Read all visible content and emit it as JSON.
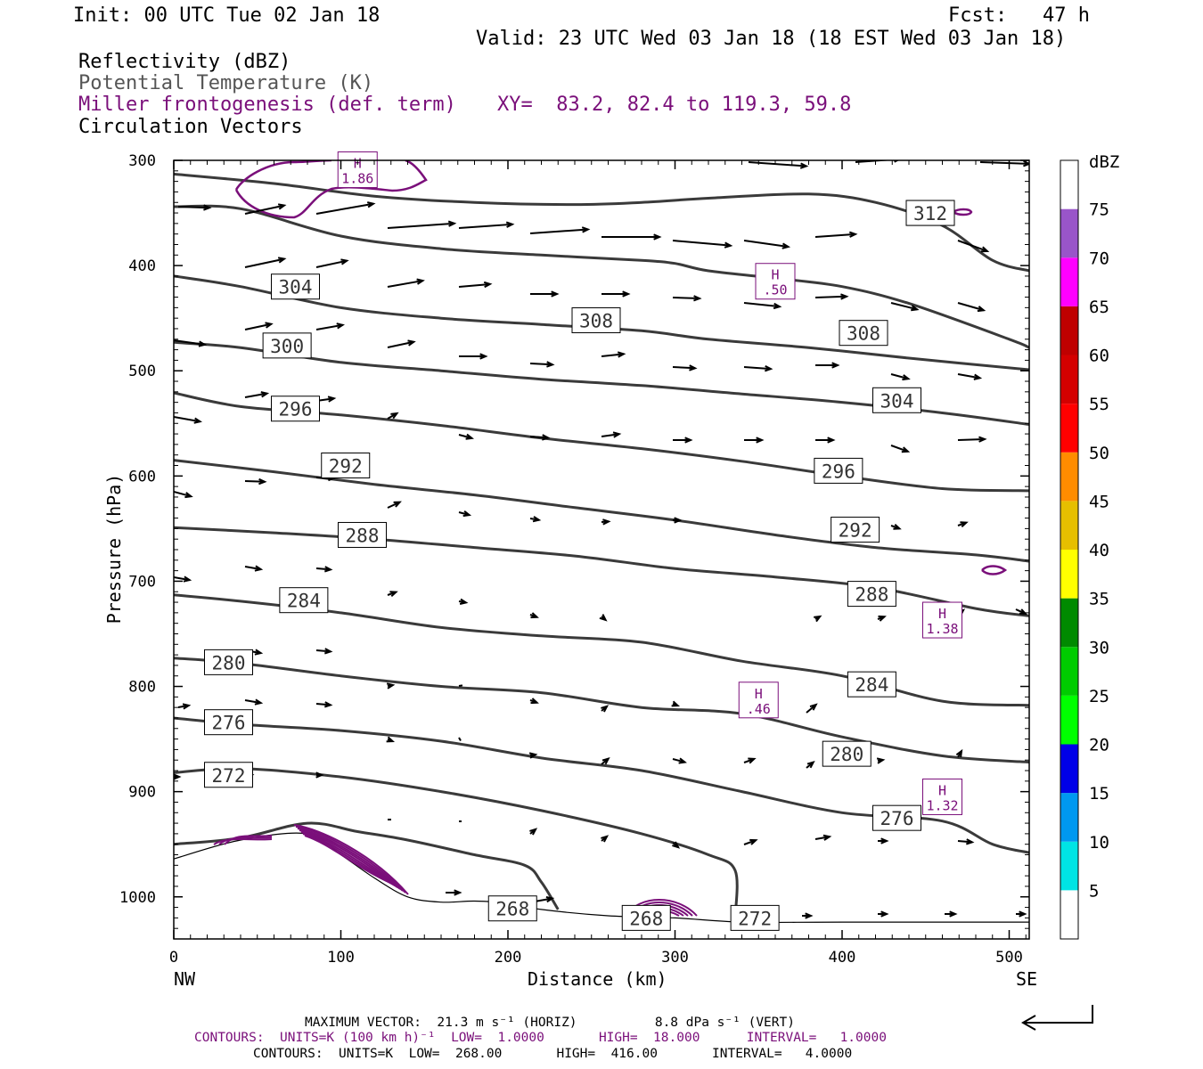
{
  "header": {
    "init": "Init: 00 UTC Tue 02 Jan 18",
    "fcst": "Fcst:   47 h",
    "valid": "Valid: 23 UTC Wed 03 Jan 18 (18 EST Wed 03 Jan 18)",
    "legend": {
      "reflectivity": "Reflectivity (dBZ)",
      "theta": "Potential Temperature (K)",
      "frontogenesis": "Miller frontogenesis (def. term)",
      "circulation": "Circulation Vectors",
      "xy": "XY=  83.2, 82.4 to 119.3, 59.8"
    }
  },
  "colors": {
    "theta": "#3a3a3a",
    "frontogenesis": "#7a0f7a",
    "vectors": "#000000"
  },
  "chart_data": {
    "type": "contour-cross-section",
    "xlabel": "Distance (km)",
    "ylabel": "Pressure (hPa)",
    "xlim": [
      0,
      512
    ],
    "ylim": [
      1040,
      300
    ],
    "x_ticks": [
      "0",
      "100",
      "200",
      "300",
      "400",
      "500"
    ],
    "x_tick_values": [
      0,
      100,
      200,
      300,
      400,
      500
    ],
    "y_ticks": [
      "300",
      "400",
      "500",
      "600",
      "700",
      "800",
      "900",
      "1000"
    ],
    "y_tick_values": [
      300,
      400,
      500,
      600,
      700,
      800,
      900,
      1000
    ],
    "x_end_left": "NW",
    "x_end_right": "SE",
    "theta_contours": [
      {
        "label": "308",
        "points": [
          [
            0,
            344
          ],
          [
            40,
            346
          ],
          [
            100,
            372
          ],
          [
            160,
            384
          ],
          [
            220,
            390
          ],
          [
            280,
            395
          ],
          [
            300,
            398
          ],
          [
            320,
            405
          ],
          [
            360,
            412
          ],
          [
            400,
            420
          ],
          [
            440,
            436
          ],
          [
            500,
            470
          ],
          [
            512,
            478
          ]
        ],
        "label_at": [
          240,
          452
        ]
      },
      {
        "label": "312",
        "points": [
          [
            0,
            313
          ],
          [
            60,
            322
          ],
          [
            120,
            334
          ],
          [
            180,
            340
          ],
          [
            240,
            342
          ],
          [
            280,
            340
          ],
          [
            320,
            336
          ],
          [
            380,
            332
          ],
          [
            420,
            340
          ],
          [
            460,
            362
          ],
          [
            490,
            395
          ],
          [
            512,
            405
          ]
        ],
        "label_at": [
          440,
          350
        ]
      },
      {
        "label": "304",
        "points": [
          [
            0,
            410
          ],
          [
            40,
            420
          ],
          [
            100,
            440
          ],
          [
            160,
            450
          ],
          [
            220,
            456
          ],
          [
            280,
            462
          ],
          [
            320,
            470
          ],
          [
            380,
            478
          ],
          [
            440,
            488
          ],
          [
            512,
            499
          ]
        ],
        "label_at": [
          60,
          420
        ]
      },
      {
        "label": "300",
        "points": [
          [
            0,
            473
          ],
          [
            40,
            478
          ],
          [
            100,
            492
          ],
          [
            160,
            500
          ],
          [
            220,
            508
          ],
          [
            280,
            514
          ],
          [
            340,
            522
          ],
          [
            400,
            530
          ],
          [
            460,
            540
          ],
          [
            512,
            551
          ]
        ],
        "label_at": [
          55,
          476
        ]
      },
      {
        "label": "296",
        "points": [
          [
            0,
            521
          ],
          [
            40,
            534
          ],
          [
            100,
            542
          ],
          [
            160,
            552
          ],
          [
            220,
            564
          ],
          [
            280,
            574
          ],
          [
            340,
            586
          ],
          [
            400,
            600
          ],
          [
            460,
            612
          ],
          [
            512,
            614
          ]
        ],
        "label_at": [
          60,
          536
        ]
      },
      {
        "label": "292",
        "points": [
          [
            0,
            585
          ],
          [
            60,
            596
          ],
          [
            120,
            608
          ],
          [
            180,
            618
          ],
          [
            240,
            630
          ],
          [
            300,
            642
          ],
          [
            360,
            656
          ],
          [
            420,
            668
          ],
          [
            480,
            675
          ],
          [
            512,
            681
          ]
        ],
        "label_at": [
          90,
          590
        ]
      },
      {
        "label": "288",
        "points": [
          [
            0,
            649
          ],
          [
            60,
            654
          ],
          [
            120,
            660
          ],
          [
            180,
            668
          ],
          [
            240,
            676
          ],
          [
            300,
            688
          ],
          [
            360,
            696
          ],
          [
            420,
            706
          ],
          [
            480,
            726
          ],
          [
            512,
            733
          ]
        ],
        "label_at": [
          100,
          656
        ]
      },
      {
        "label": "284",
        "points": [
          [
            0,
            713
          ],
          [
            40,
            719
          ],
          [
            100,
            730
          ],
          [
            160,
            744
          ],
          [
            220,
            752
          ],
          [
            280,
            758
          ],
          [
            340,
            776
          ],
          [
            400,
            790
          ],
          [
            460,
            814
          ],
          [
            512,
            818
          ]
        ],
        "label_at": [
          65,
          718
        ]
      },
      {
        "label": "280",
        "points": [
          [
            0,
            773
          ],
          [
            40,
            778
          ],
          [
            100,
            790
          ],
          [
            160,
            800
          ],
          [
            220,
            806
          ],
          [
            280,
            820
          ],
          [
            340,
            826
          ],
          [
            400,
            848
          ],
          [
            460,
            866
          ],
          [
            512,
            872
          ]
        ],
        "label_at": [
          20,
          777
        ]
      },
      {
        "label": "276",
        "points": [
          [
            0,
            830
          ],
          [
            40,
            836
          ],
          [
            100,
            842
          ],
          [
            160,
            852
          ],
          [
            220,
            868
          ],
          [
            280,
            880
          ],
          [
            340,
            900
          ],
          [
            400,
            920
          ],
          [
            460,
            928
          ],
          [
            490,
            950
          ],
          [
            512,
            958
          ]
        ],
        "label_at": [
          20,
          834
        ]
      },
      {
        "label": "272",
        "points": [
          [
            0,
            882
          ],
          [
            40,
            878
          ],
          [
            100,
            886
          ],
          [
            160,
            900
          ],
          [
            220,
            918
          ],
          [
            280,
            940
          ],
          [
            320,
            960
          ],
          [
            336,
            975
          ],
          [
            336,
            1020
          ]
        ],
        "label_at": [
          20,
          884
        ]
      },
      {
        "label": "268",
        "points": [
          [
            0,
            950
          ],
          [
            40,
            944
          ],
          [
            80,
            930
          ],
          [
            110,
            938
          ],
          [
            140,
            946
          ],
          [
            180,
            960
          ],
          [
            210,
            970
          ],
          [
            220,
            986
          ],
          [
            230,
            1012
          ]
        ],
        "label_at": [
          190,
          1011
        ]
      }
    ],
    "terrain": [
      [
        0,
        964
      ],
      [
        40,
        946
      ],
      [
        80,
        940
      ],
      [
        100,
        960
      ],
      [
        120,
        982
      ],
      [
        140,
        1000
      ],
      [
        160,
        1005
      ],
      [
        180,
        1004
      ],
      [
        200,
        1006
      ],
      [
        220,
        1012
      ],
      [
        260,
        1018
      ],
      [
        300,
        1020
      ],
      [
        340,
        1024
      ],
      [
        400,
        1024
      ],
      [
        512,
        1024
      ]
    ],
    "high_labels": [
      {
        "text": "H",
        "value": "1.86"
      },
      {
        "text": "H",
        "value": ".50"
      },
      {
        "text": "H",
        "value": "1.38"
      },
      {
        "text": "H",
        "value": ".46"
      },
      {
        "text": "H",
        "value": "1.32"
      }
    ],
    "reflectivity_scale": {
      "unit": "dBZ",
      "levels": [
        "5",
        "10",
        "15",
        "20",
        "25",
        "30",
        "35",
        "40",
        "45",
        "50",
        "55",
        "60",
        "65",
        "70",
        "75"
      ],
      "colors": [
        "#00e4e4",
        "#0098f0",
        "#0000e8",
        "#00ff00",
        "#00cc00",
        "#008a00",
        "#ffff00",
        "#e6bf00",
        "#ff8c00",
        "#ff0000",
        "#d40000",
        "#bf0000",
        "#ff00ff",
        "#9955c9",
        "#ffffff"
      ]
    }
  },
  "footer": {
    "max_vector": "MAXIMUM VECTOR:  21.3 m s⁻¹ (HORIZ)          8.8 dPa s⁻¹ (VERT)",
    "contours_purple": "CONTOURS:  UNITS=K (100 km h)⁻¹  LOW=  1.0000       HIGH=  18.000      INTERVAL=   1.0000",
    "contours_black": "CONTOURS:  UNITS=K  LOW=  268.00       HIGH=  416.00       INTERVAL=   4.0000"
  }
}
